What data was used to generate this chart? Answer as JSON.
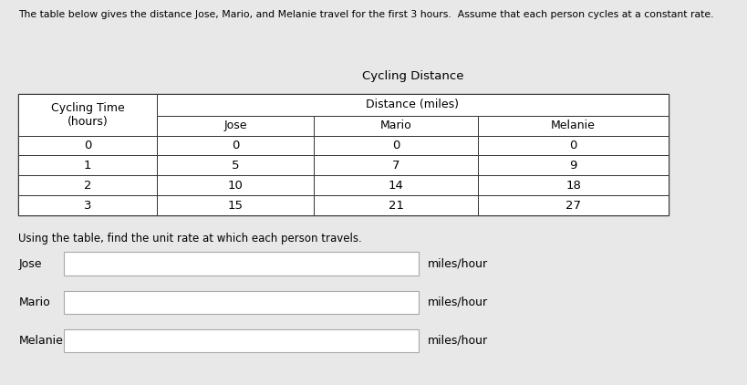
{
  "bg_color": "#e8e8e8",
  "table_bg": "#ffffff",
  "title_text": "The table below gives the distance Jose, Mario, and Melanie travel for the first 3 hours.  Assume that each person cycles at a constant rate.",
  "table_title": "Cycling Distance",
  "col_header_left": "Cycling Time\n(hours)",
  "col_header_right": "Distance (miles)",
  "sub_headers": [
    "Jose",
    "Mario",
    "Melanie"
  ],
  "time_col": [
    0,
    1,
    2,
    3
  ],
  "jose_col": [
    0,
    5,
    10,
    15
  ],
  "mario_col": [
    0,
    7,
    14,
    21
  ],
  "melanie_col": [
    0,
    9,
    18,
    27
  ],
  "instruction_text": "Using the table, find the unit rate at which each person travels.",
  "label_jose": "Jose",
  "label_mario": "Mario",
  "label_melanie": "Melanie",
  "miles_hour": "miles/hour",
  "font_size_title": 7.8,
  "font_size_table_header": 9.0,
  "font_size_table_data": 9.5,
  "font_size_instruction": 8.5,
  "font_size_label": 9.0,
  "font_size_table_title": 9.5
}
